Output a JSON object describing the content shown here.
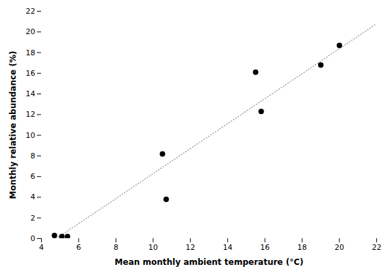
{
  "chart_data": {
    "type": "scatter",
    "xlabel": "Mean monthly ambient temperature (°C)",
    "ylabel": "Monthly relative abundance (%)",
    "series": [
      {
        "type": "line",
        "color": "#888888",
        "line_style": "dotted",
        "x": [
          4.8,
          22.0
        ],
        "values": [
          0.0,
          20.8
        ]
      },
      {
        "type": "scatter",
        "color": "black",
        "marker": "circle",
        "x": [
          4.7,
          5.1,
          5.4,
          10.5,
          10.7,
          15.5,
          15.8,
          19.0,
          20.0
        ],
        "values": [
          0.3,
          0.2,
          0.2,
          8.2,
          3.8,
          16.1,
          12.3,
          16.8,
          18.7
        ]
      }
    ],
    "xlim": [
      4,
      22
    ],
    "ylim": [
      0,
      22
    ],
    "xticks": [
      4,
      6,
      8,
      10,
      12,
      14,
      16,
      18,
      20,
      22
    ],
    "yticks": [
      0,
      2,
      4,
      6,
      8,
      10,
      12,
      14,
      16,
      18,
      20,
      22
    ],
    "grid": false
  }
}
